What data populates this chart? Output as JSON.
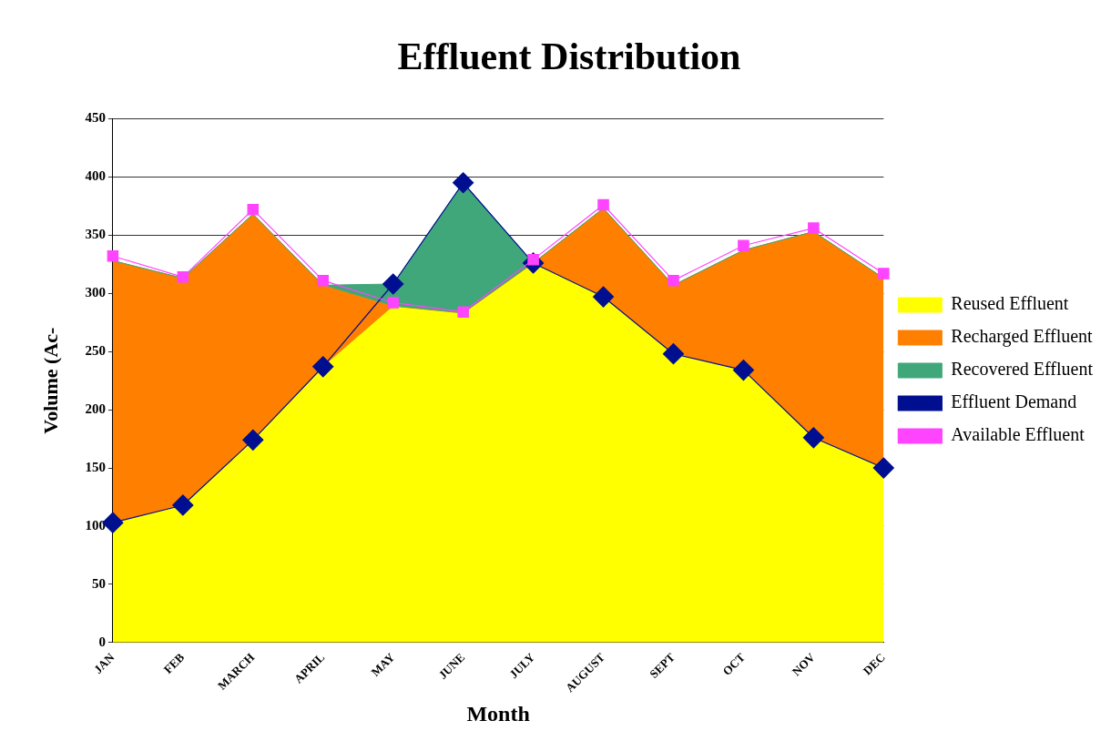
{
  "chart_data": {
    "type": "area",
    "title": "Effluent Distribution",
    "xlabel": "Month",
    "ylabel": "Volume (Ac-",
    "categories": [
      "JAN",
      "FEB",
      "MARCH",
      "APRIL",
      "MAY",
      "JUNE",
      "JULY",
      "AUGUST",
      "SEPT",
      "OCT",
      "NOV",
      "DEC"
    ],
    "stacked": true,
    "ylim": [
      0,
      450
    ],
    "yticks": [
      0,
      50,
      100,
      150,
      200,
      250,
      300,
      350,
      400,
      450
    ],
    "grid": "y",
    "legend": "right",
    "series": [
      {
        "name": "Reused Effluent",
        "color": "#ffff00",
        "values": [
          103,
          118,
          174,
          237,
          289,
          283,
          326,
          297,
          248,
          234,
          176,
          150
        ]
      },
      {
        "name": "Recharged Effluent",
        "color": "#ff7f00",
        "values": [
          225,
          195,
          194,
          70,
          0,
          0,
          0,
          76,
          59,
          103,
          177,
          163
        ]
      },
      {
        "name": "Recovered Effluent",
        "color": "#3fa77a",
        "values": [
          0,
          0,
          0,
          0,
          19,
          112,
          0,
          0,
          0,
          0,
          0,
          0
        ]
      },
      {
        "name": "Effluent Demand",
        "type": "line",
        "color": "#000f8f",
        "marker": "diamond",
        "values": [
          103,
          118,
          174,
          237,
          308,
          395,
          326,
          297,
          248,
          234,
          176,
          150
        ]
      },
      {
        "name": "Available Effluent",
        "type": "line",
        "color": "#ff44ff",
        "marker": "square",
        "values": [
          332,
          314,
          372,
          311,
          292,
          284,
          329,
          376,
          311,
          341,
          356,
          317
        ]
      }
    ]
  }
}
